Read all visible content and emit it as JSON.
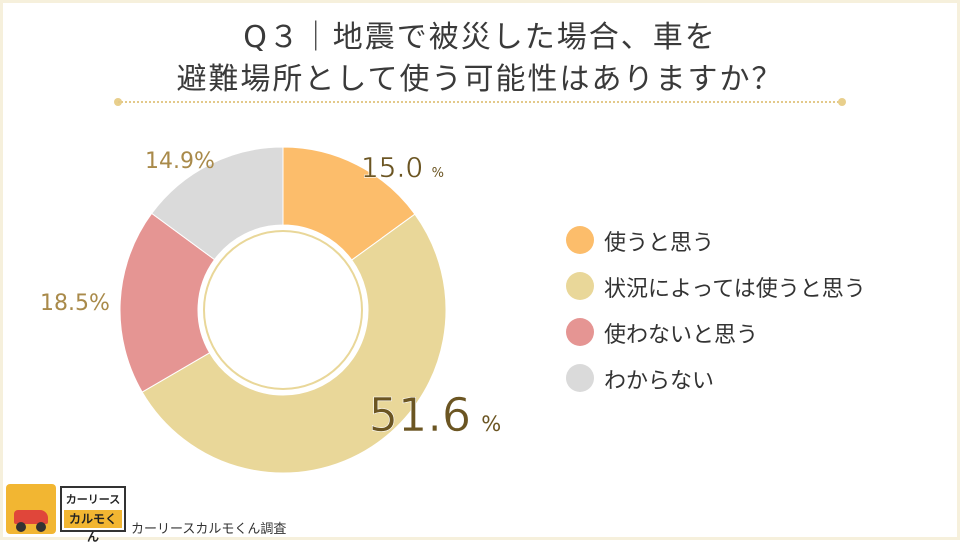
{
  "title": {
    "line1": "Q３｜地震で被災した場合、車を",
    "line2": "避難場所として使う可能性はありますか？"
  },
  "chart_data": {
    "type": "pie",
    "subtype": "donut",
    "labels": [
      "使うと思う",
      "状況によっては使うと思う",
      "使わないと思う",
      "わからない"
    ],
    "values": [
      15.0,
      51.6,
      18.5,
      14.9
    ],
    "value_labels": [
      "15.0",
      "51.6",
      "18.5%",
      "14.9%"
    ],
    "unit": "%",
    "colors": [
      "#fcbd6b",
      "#e9d799",
      "#e59593",
      "#dadada"
    ],
    "legend_position": "right"
  },
  "brand": {
    "logo_top": "カーリース",
    "logo_bottom": "カルモくん",
    "credit": "カーリースカルモくん調査"
  }
}
